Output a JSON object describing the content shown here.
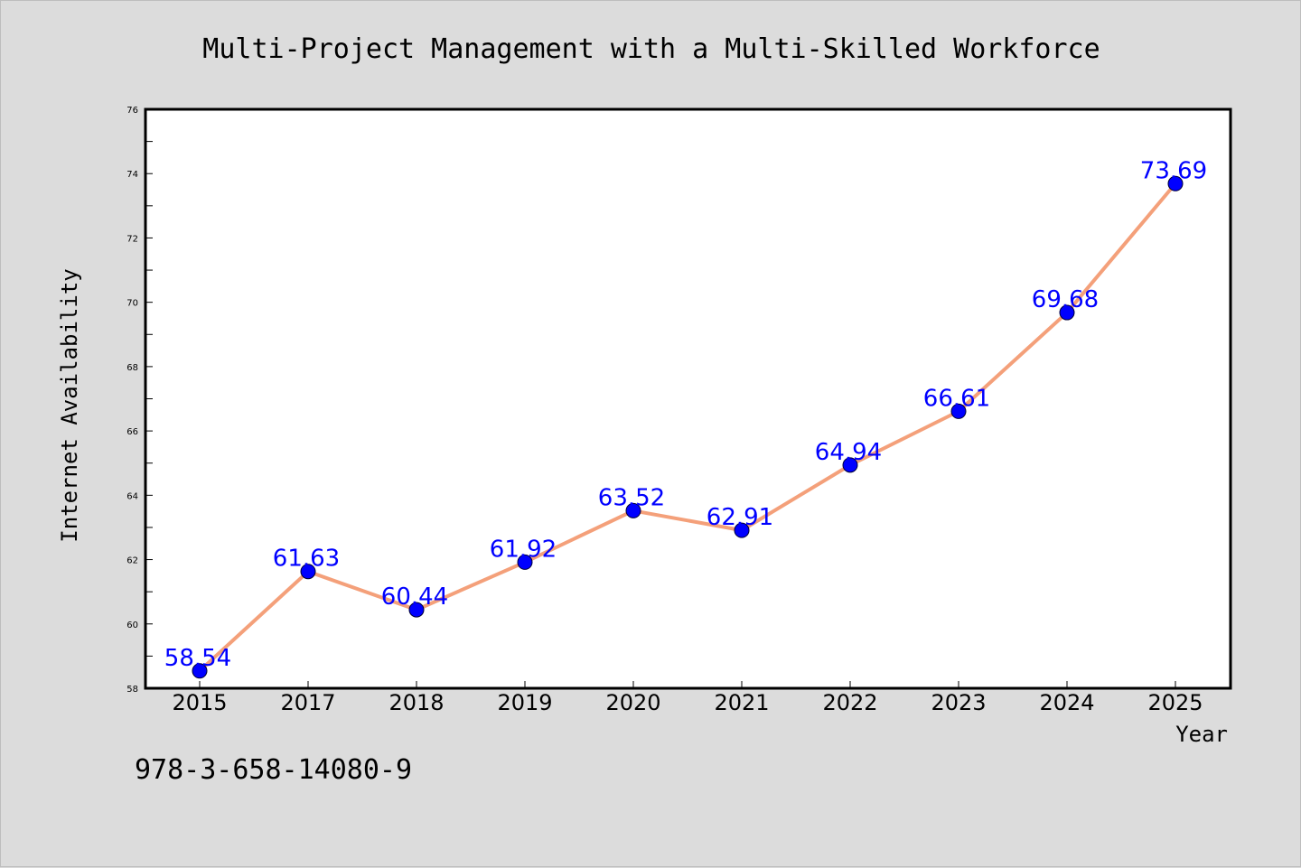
{
  "chart_data": {
    "type": "line",
    "title": "Multi-Project Management with a Multi-Skilled Workforce",
    "xlabel": "Year",
    "ylabel": "Internet Availability",
    "categories": [
      "2015",
      "2017",
      "2018",
      "2019",
      "2020",
      "2021",
      "2022",
      "2023",
      "2024",
      "2025"
    ],
    "series": [
      {
        "values": [
          58.54,
          61.63,
          60.44,
          61.92,
          63.52,
          62.91,
          64.94,
          66.61,
          69.68,
          73.69
        ],
        "labels": [
          "58.54",
          "61.63",
          "60.44",
          "61.92",
          "63.52",
          "62.91",
          "64.94",
          "66.61",
          "69.68",
          "73.69"
        ],
        "line_color": "#f4a07a",
        "marker_color": "#0000ff"
      }
    ],
    "ylim": [
      58,
      76
    ],
    "yticks": [
      "58",
      "60",
      "62",
      "64",
      "66",
      "68",
      "70",
      "72",
      "74",
      "76"
    ],
    "grid": false,
    "legend": "none"
  },
  "footnote": "978-3-658-14080-9"
}
